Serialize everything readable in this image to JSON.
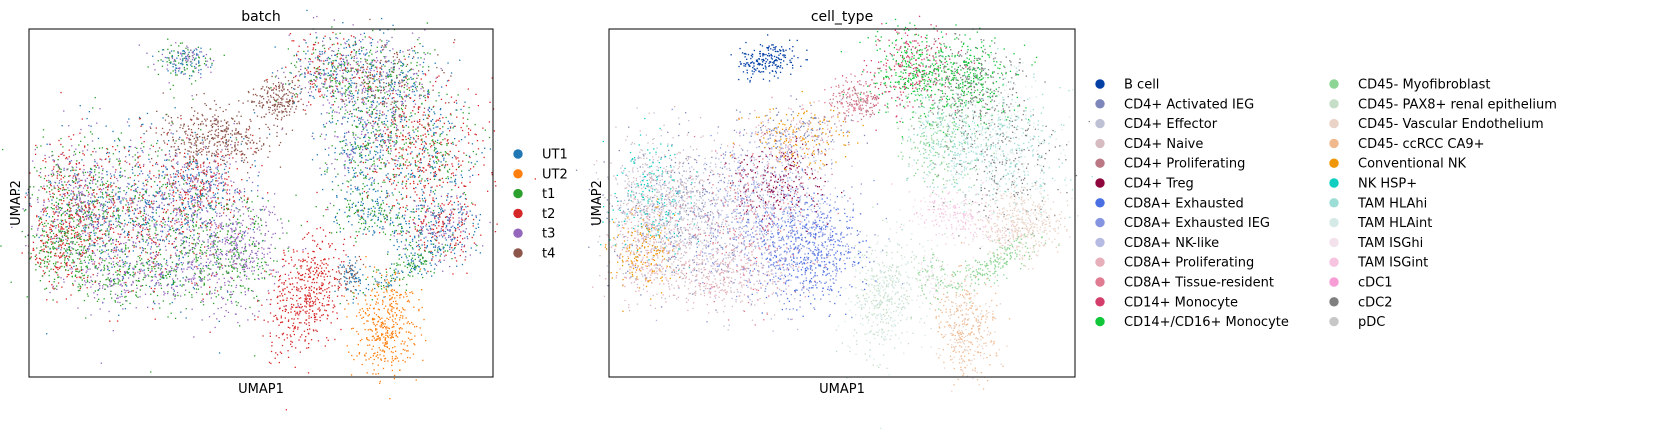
{
  "chart_data": [
    {
      "type": "scatter",
      "title": "batch",
      "xlabel": "UMAP1",
      "ylabel": "UMAP2",
      "legend_position": "right",
      "grid": false,
      "legend": [
        {
          "label": "UT1",
          "color": "#1f77b4"
        },
        {
          "label": "UT2",
          "color": "#ff7f0e"
        },
        {
          "label": "t1",
          "color": "#2ca02c"
        },
        {
          "label": "t2",
          "color": "#d62728"
        },
        {
          "label": "t3",
          "color": "#9467bd"
        },
        {
          "label": "t4",
          "color": "#8c564b"
        }
      ]
    },
    {
      "type": "scatter",
      "title": "cell_type",
      "xlabel": "UMAP1",
      "ylabel": "UMAP2",
      "legend_position": "right",
      "grid": false,
      "legend": [
        {
          "label": "B cell",
          "color": "#023fa5"
        },
        {
          "label": "CD4+ Activated IEG",
          "color": "#7d87b9"
        },
        {
          "label": "CD4+ Effector",
          "color": "#bec1d4"
        },
        {
          "label": "CD4+ Naive",
          "color": "#d6bcc0"
        },
        {
          "label": "CD4+ Proliferating",
          "color": "#bb7784"
        },
        {
          "label": "CD4+ Treg",
          "color": "#8e063b"
        },
        {
          "label": "CD8A+ Exhausted",
          "color": "#4a6fe3"
        },
        {
          "label": "CD8A+ Exhausted IEG",
          "color": "#8595e1"
        },
        {
          "label": "CD8A+ NK-like",
          "color": "#b5bbe3"
        },
        {
          "label": "CD8A+ Proliferating",
          "color": "#e6afb9"
        },
        {
          "label": "CD8A+ Tissue-resident",
          "color": "#e07b91"
        },
        {
          "label": "CD14+ Monocyte",
          "color": "#d33f6a"
        },
        {
          "label": "CD14+/CD16+ Monocyte",
          "color": "#11c638"
        },
        {
          "label": "CD45- Myofibroblast",
          "color": "#8dd593"
        },
        {
          "label": "CD45- PAX8+ renal epithelium",
          "color": "#c6dec7"
        },
        {
          "label": "CD45- Vascular Endothelium",
          "color": "#ead3c6"
        },
        {
          "label": "CD45- ccRCC CA9+",
          "color": "#f0b98d"
        },
        {
          "label": "Conventional NK",
          "color": "#ef9708"
        },
        {
          "label": "NK HSP+",
          "color": "#0fcfc0"
        },
        {
          "label": "TAM HLAhi",
          "color": "#9cded6"
        },
        {
          "label": "TAM HLAint",
          "color": "#d5eae7"
        },
        {
          "label": "TAM ISGhi",
          "color": "#f3e1eb"
        },
        {
          "label": "TAM ISGint",
          "color": "#f6c4e1"
        },
        {
          "label": "cDC1",
          "color": "#f79cd4"
        },
        {
          "label": "cDC2",
          "color": "#7f7f7f"
        },
        {
          "label": "pDC",
          "color": "#c7c7c7"
        }
      ]
    }
  ]
}
